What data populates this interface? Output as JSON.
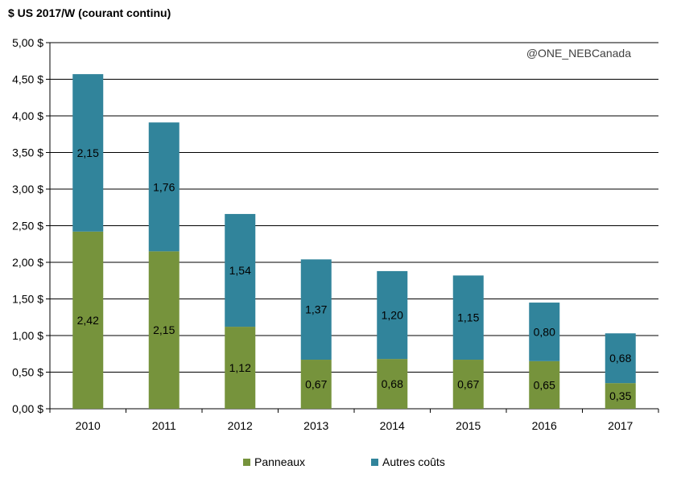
{
  "chart_data": {
    "type": "bar",
    "stacked": true,
    "title": "",
    "ylabel": "$ US 2017/W (courant continu)",
    "xlabel": "",
    "categories": [
      "2010",
      "2011",
      "2012",
      "2013",
      "2014",
      "2015",
      "2016",
      "2017"
    ],
    "series": [
      {
        "name": "Panneaux",
        "color": "#76933c",
        "values": [
          2.42,
          2.15,
          1.12,
          0.67,
          0.68,
          0.67,
          0.65,
          0.35
        ],
        "labels": [
          "2,42",
          "2,15",
          "1,12",
          "0,67",
          "0,68",
          "0,67",
          "0,65",
          "0,35"
        ]
      },
      {
        "name": "Autres coûts",
        "color": "#31849b",
        "values": [
          2.15,
          1.76,
          1.54,
          1.37,
          1.2,
          1.15,
          0.8,
          0.68
        ],
        "labels": [
          "2,15",
          "1,76",
          "1,54",
          "1,37",
          "1,20",
          "1,15",
          "0,80",
          "0,68"
        ]
      }
    ],
    "ylim": [
      0,
      5
    ],
    "yticks": [
      0,
      0.5,
      1,
      1.5,
      2,
      2.5,
      3,
      3.5,
      4,
      4.5,
      5
    ],
    "ytick_labels": [
      "0,00 $",
      "0,50 $",
      "1,00 $",
      "1,50 $",
      "2,00 $",
      "2,50 $",
      "3,00 $",
      "3,50 $",
      "4,00 $",
      "4,50 $",
      "5,00 $"
    ],
    "grid": true,
    "legend_position": "bottom"
  },
  "watermark": "@ONE_NEBCanada"
}
